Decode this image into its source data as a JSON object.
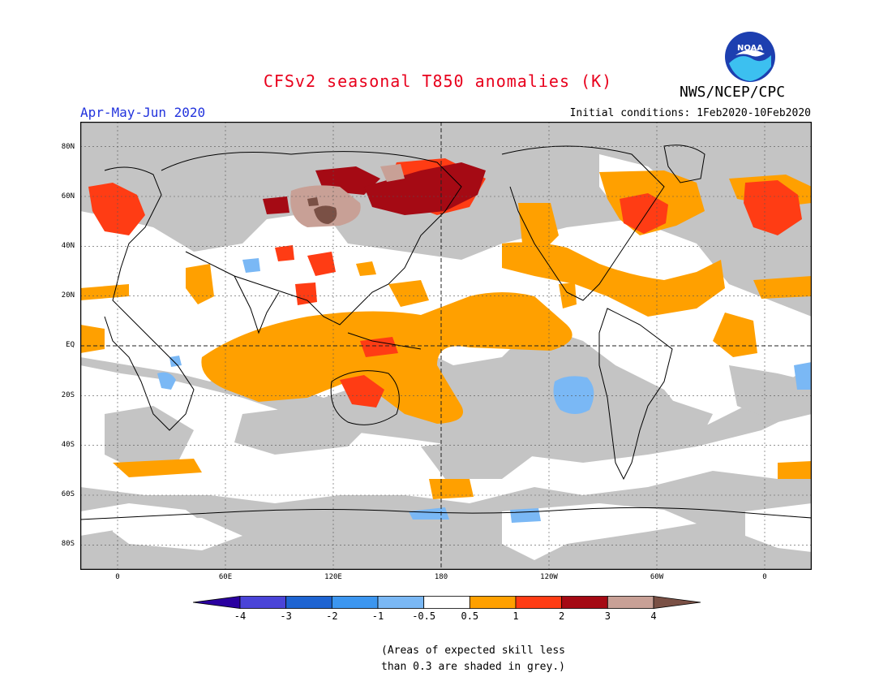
{
  "header": {
    "title": "CFSv2 seasonal T850 anomalies (K)",
    "organization": "NWS/NCEP/CPC",
    "logo_text": "NOAA",
    "period": "Apr-May-Jun 2020",
    "initial_conditions": "Initial conditions: 1Feb2020-10Feb2020"
  },
  "map": {
    "latitude_labels": [
      "80N",
      "60N",
      "40N",
      "20N",
      "EQ",
      "20S",
      "40S",
      "60S",
      "80S"
    ],
    "longitude_labels": [
      "0",
      "60E",
      "120E",
      "180",
      "120W",
      "60W",
      "0"
    ],
    "colors": {
      "skill_grey": "#c4c4c4",
      "neutral": "#ffffff",
      "light_blue": "#7ab8f5",
      "orange": "#ffa000",
      "red_orange": "#ff3c14",
      "dark_red": "#a50a14",
      "tan": "#c8a096",
      "brown": "#7a5045"
    }
  },
  "colorbar": {
    "ticks": [
      "-4",
      "-3",
      "-2",
      "-1",
      "-0.5",
      "0.5",
      "1",
      "2",
      "3",
      "4"
    ],
    "colors": [
      "#2a00a0",
      "#4a44d8",
      "#1e64d2",
      "#3c96f0",
      "#7ab8f5",
      "#ffffff",
      "#ffa000",
      "#ff3c14",
      "#a50a14",
      "#c8a096",
      "#7a5045"
    ]
  },
  "footnote": {
    "line1": "(Areas of expected skill less",
    "line2": "than 0.3 are shaded in grey.)"
  }
}
